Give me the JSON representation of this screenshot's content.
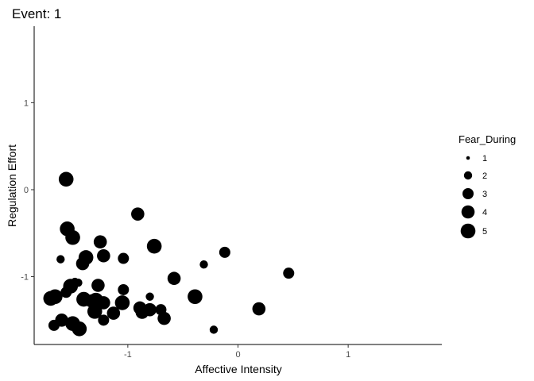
{
  "chart_data": {
    "type": "scatter",
    "title": "Event: 1",
    "xlabel": "Affective Intensity",
    "ylabel": "Regulation Effort",
    "xlim": [
      -1.85,
      1.85
    ],
    "ylim": [
      -1.78,
      1.88
    ],
    "x_ticks": [
      -1,
      0,
      1
    ],
    "x_tick_labels": [
      "-1",
      "0",
      "1"
    ],
    "y_ticks": [
      -1,
      0,
      1
    ],
    "y_tick_labels": [
      "-1",
      "0",
      "1"
    ],
    "grid": false,
    "legend": {
      "title": "Fear_During",
      "placement": "right",
      "entries": [
        {
          "label": "1",
          "size": 1
        },
        {
          "label": "2",
          "size": 2
        },
        {
          "label": "3",
          "size": 3
        },
        {
          "label": "4",
          "size": 4
        },
        {
          "label": "5",
          "size": 5
        }
      ]
    },
    "points": [
      {
        "x": -1.56,
        "y": 0.12,
        "size": 5
      },
      {
        "x": -1.55,
        "y": -0.45,
        "size": 5
      },
      {
        "x": -1.5,
        "y": -0.55,
        "size": 5
      },
      {
        "x": -1.61,
        "y": -0.8,
        "size": 2
      },
      {
        "x": -1.41,
        "y": -0.85,
        "size": 4
      },
      {
        "x": -1.38,
        "y": -0.78,
        "size": 5
      },
      {
        "x": -1.25,
        "y": -0.6,
        "size": 4
      },
      {
        "x": -1.22,
        "y": -0.76,
        "size": 4
      },
      {
        "x": -0.91,
        "y": -0.28,
        "size": 4
      },
      {
        "x": -1.04,
        "y": -0.79,
        "size": 3
      },
      {
        "x": -0.76,
        "y": -0.65,
        "size": 5
      },
      {
        "x": -0.12,
        "y": -0.72,
        "size": 3
      },
      {
        "x": -0.31,
        "y": -0.86,
        "size": 2
      },
      {
        "x": 0.46,
        "y": -0.96,
        "size": 3
      },
      {
        "x": -1.52,
        "y": -1.11,
        "size": 5
      },
      {
        "x": -1.48,
        "y": -1.06,
        "size": 2
      },
      {
        "x": -1.56,
        "y": -1.18,
        "size": 3
      },
      {
        "x": -1.45,
        "y": -1.07,
        "size": 2
      },
      {
        "x": -1.27,
        "y": -1.1,
        "size": 4
      },
      {
        "x": -1.04,
        "y": -1.15,
        "size": 3
      },
      {
        "x": -0.58,
        "y": -1.02,
        "size": 4
      },
      {
        "x": -1.7,
        "y": -1.25,
        "size": 5
      },
      {
        "x": -1.66,
        "y": -1.23,
        "size": 5
      },
      {
        "x": -1.4,
        "y": -1.26,
        "size": 5
      },
      {
        "x": -1.33,
        "y": -1.28,
        "size": 4
      },
      {
        "x": -1.29,
        "y": -1.27,
        "size": 5
      },
      {
        "x": -1.22,
        "y": -1.3,
        "size": 4
      },
      {
        "x": -1.3,
        "y": -1.4,
        "size": 5
      },
      {
        "x": -1.13,
        "y": -1.42,
        "size": 4
      },
      {
        "x": -1.05,
        "y": -1.3,
        "size": 5
      },
      {
        "x": -0.89,
        "y": -1.36,
        "size": 4
      },
      {
        "x": -0.87,
        "y": -1.41,
        "size": 4
      },
      {
        "x": -0.8,
        "y": -1.38,
        "size": 4
      },
      {
        "x": -0.8,
        "y": -1.23,
        "size": 2
      },
      {
        "x": -0.7,
        "y": -1.38,
        "size": 3
      },
      {
        "x": -0.67,
        "y": -1.48,
        "size": 4
      },
      {
        "x": -0.39,
        "y": -1.23,
        "size": 5
      },
      {
        "x": 0.19,
        "y": -1.37,
        "size": 4
      },
      {
        "x": -1.6,
        "y": -1.5,
        "size": 4
      },
      {
        "x": -1.67,
        "y": -1.56,
        "size": 3
      },
      {
        "x": -1.5,
        "y": -1.54,
        "size": 5
      },
      {
        "x": -1.44,
        "y": -1.6,
        "size": 5
      },
      {
        "x": -1.22,
        "y": -1.5,
        "size": 3
      },
      {
        "x": -0.22,
        "y": -1.61,
        "size": 2
      }
    ]
  }
}
